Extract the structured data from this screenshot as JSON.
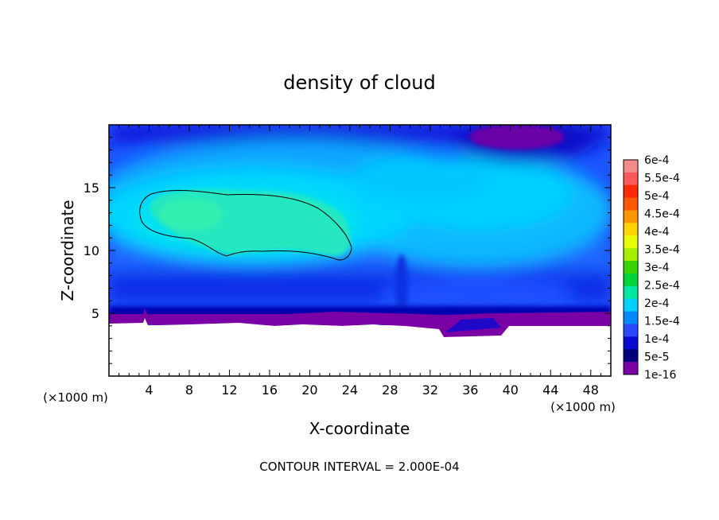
{
  "chart_data": {
    "type": "heatmap",
    "title": "density of cloud",
    "xlabel": "X-coordinate",
    "ylabel": "Z-coordinate",
    "x_unit_left": "(×1000 m)",
    "x_unit_right": "(×1000 m)",
    "footer": "CONTOUR INTERVAL = 2.000E-04",
    "xlim": [
      0,
      50
    ],
    "ylim": [
      0,
      20
    ],
    "x_ticks": [
      4,
      8,
      12,
      16,
      20,
      24,
      28,
      32,
      36,
      40,
      44,
      48
    ],
    "y_ticks": [
      5,
      10,
      15
    ],
    "contour_levels": [
      0.0002
    ],
    "regions": [
      {
        "name": "upper dry pocket",
        "level": "1e-16",
        "x": [
          37,
          47
        ],
        "z": [
          18,
          20
        ]
      },
      {
        "name": "cloud core",
        "level": "2e-4",
        "x": [
          3,
          24
        ],
        "z": [
          9,
          15
        ]
      },
      {
        "name": "cloud base",
        "level": "1e-16",
        "x": [
          0,
          50
        ],
        "z": [
          4.3,
          5.2
        ]
      }
    ],
    "colorbar": {
      "labels": [
        "6e-4",
        "5.5e-4",
        "5e-4",
        "4.5e-4",
        "4e-4",
        "3.5e-4",
        "3e-4",
        "2.5e-4",
        "2e-4",
        "1.5e-4",
        "1e-4",
        "5e-5",
        "1e-16"
      ],
      "colors": [
        "#f48a8a",
        "#ff5a5a",
        "#ff2a00",
        "#ff5800",
        "#ff9800",
        "#ffd400",
        "#e8ff00",
        "#a6ee00",
        "#38d400",
        "#00d43a",
        "#00e6a0",
        "#00d0ff",
        "#0088ff",
        "#2a48ff",
        "#0a0ad2",
        "#00007c",
        "#7a00a6"
      ]
    }
  }
}
